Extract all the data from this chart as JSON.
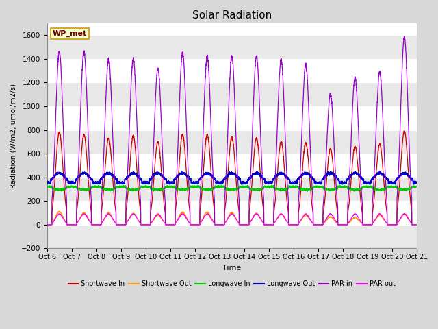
{
  "title": "Solar Radiation",
  "ylabel": "Radiation (W/m2, umol/m2/s)",
  "xlabel": "Time",
  "ylim": [
    -200,
    1700
  ],
  "yticks": [
    -200,
    0,
    200,
    400,
    600,
    800,
    1000,
    1200,
    1400,
    1600
  ],
  "x_tick_labels": [
    "Oct 6",
    "Oct 7",
    "Oct 8",
    "Oct 9",
    "Oct 10",
    "Oct 11",
    "Oct 12",
    "Oct 13",
    "Oct 14",
    "Oct 15",
    "Oct 16",
    "Oct 17",
    "Oct 18",
    "Oct 19",
    "Oct 20",
    "Oct 21"
  ],
  "background_color": "#d8d8d8",
  "plot_bg_color": "#ffffff",
  "grid_color_light": "#e8e8e8",
  "grid_color_dark": "#cccccc",
  "legend_labels": [
    "Shortwave In",
    "Shortwave Out",
    "Longwave In",
    "Longwave Out",
    "PAR in",
    "PAR out"
  ],
  "legend_colors": [
    "#cc0000",
    "#ff9900",
    "#00cc00",
    "#0000cc",
    "#9900cc",
    "#ff00ff"
  ],
  "station_label": "WP_met",
  "num_days": 15,
  "n_points_per_day": 288
}
